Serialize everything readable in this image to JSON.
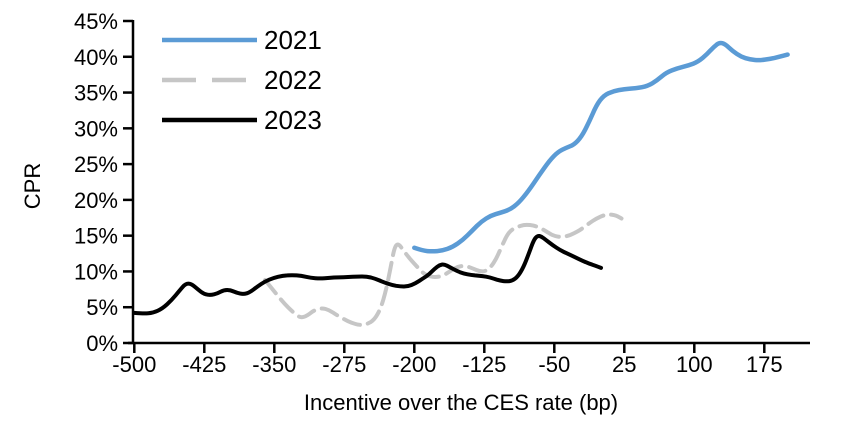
{
  "chart_data": {
    "type": "line",
    "title": "",
    "xlabel": "Incentive over the CES rate (bp)",
    "ylabel": "CPR",
    "xlim": [
      -505,
      225
    ],
    "ylim": [
      0,
      45
    ],
    "x_ticks": [
      -500,
      -425,
      -350,
      -275,
      -200,
      -125,
      -50,
      25,
      100,
      175
    ],
    "y_ticks": [
      0,
      5,
      10,
      15,
      20,
      25,
      30,
      35,
      40,
      45
    ],
    "y_tick_suffix": "%",
    "grid": false,
    "legend_position": "top-left-inside",
    "series": [
      {
        "name": "2021",
        "color": "#5B9BD5",
        "style": "solid",
        "points": [
          [
            -200,
            13.3
          ],
          [
            -191,
            12.9
          ],
          [
            -181,
            12.8
          ],
          [
            -170,
            12.9
          ],
          [
            -159,
            13.4
          ],
          [
            -148,
            14.4
          ],
          [
            -138,
            15.7
          ],
          [
            -128,
            17.0
          ],
          [
            -118,
            17.8
          ],
          [
            -108,
            18.2
          ],
          [
            -98,
            18.6
          ],
          [
            -88,
            19.6
          ],
          [
            -78,
            21.2
          ],
          [
            -66,
            23.5
          ],
          [
            -55,
            25.5
          ],
          [
            -46,
            26.7
          ],
          [
            -37,
            27.3
          ],
          [
            -29,
            27.7
          ],
          [
            -21,
            28.8
          ],
          [
            -13,
            30.8
          ],
          [
            -5,
            33.2
          ],
          [
            3,
            34.6
          ],
          [
            13,
            35.2
          ],
          [
            25,
            35.5
          ],
          [
            38,
            35.6
          ],
          [
            50,
            35.9
          ],
          [
            60,
            36.7
          ],
          [
            70,
            37.8
          ],
          [
            82,
            38.4
          ],
          [
            94,
            38.8
          ],
          [
            104,
            39.3
          ],
          [
            114,
            40.4
          ],
          [
            121,
            41.4
          ],
          [
            127,
            42.0
          ],
          [
            133,
            41.8
          ],
          [
            141,
            40.8
          ],
          [
            150,
            40.0
          ],
          [
            160,
            39.6
          ],
          [
            170,
            39.5
          ],
          [
            181,
            39.7
          ],
          [
            191,
            40.0
          ],
          [
            200,
            40.3
          ]
        ]
      },
      {
        "name": "2022",
        "color": "#C6C6C6",
        "style": "dashed",
        "points": [
          [
            -360,
            8.8
          ],
          [
            -350,
            7.2
          ],
          [
            -340,
            5.6
          ],
          [
            -330,
            4.3
          ],
          [
            -322,
            3.5
          ],
          [
            -315,
            3.8
          ],
          [
            -307,
            4.6
          ],
          [
            -299,
            4.9
          ],
          [
            -291,
            4.6
          ],
          [
            -283,
            3.9
          ],
          [
            -275,
            3.3
          ],
          [
            -267,
            2.8
          ],
          [
            -259,
            2.5
          ],
          [
            -251,
            2.6
          ],
          [
            -243,
            3.2
          ],
          [
            -236,
            4.8
          ],
          [
            -230,
            7.5
          ],
          [
            -225,
            10.8
          ],
          [
            -221,
            13.5
          ],
          [
            -217,
            13.9
          ],
          [
            -212,
            13.0
          ],
          [
            -205,
            11.8
          ],
          [
            -198,
            10.8
          ],
          [
            -191,
            9.8
          ],
          [
            -184,
            9.3
          ],
          [
            -177,
            9.2
          ],
          [
            -169,
            9.4
          ],
          [
            -161,
            10.1
          ],
          [
            -153,
            10.7
          ],
          [
            -145,
            10.8
          ],
          [
            -137,
            10.4
          ],
          [
            -130,
            10.0
          ],
          [
            -124,
            10.0
          ],
          [
            -118,
            10.6
          ],
          [
            -112,
            11.8
          ],
          [
            -106,
            13.6
          ],
          [
            -101,
            15.0
          ],
          [
            -96,
            15.8
          ],
          [
            -90,
            16.2
          ],
          [
            -83,
            16.5
          ],
          [
            -76,
            16.5
          ],
          [
            -69,
            16.3
          ],
          [
            -61,
            15.8
          ],
          [
            -53,
            15.1
          ],
          [
            -45,
            14.8
          ],
          [
            -37,
            14.9
          ],
          [
            -29,
            15.3
          ],
          [
            -21,
            15.9
          ],
          [
            -13,
            16.7
          ],
          [
            -5,
            17.4
          ],
          [
            2,
            17.8
          ],
          [
            8,
            18.0
          ],
          [
            14,
            17.9
          ],
          [
            18,
            17.7
          ],
          [
            22,
            17.4
          ]
        ]
      },
      {
        "name": "2023",
        "color": "#000000",
        "style": "solid",
        "points": [
          [
            -500,
            4.2
          ],
          [
            -490,
            4.1
          ],
          [
            -480,
            4.2
          ],
          [
            -470,
            4.8
          ],
          [
            -460,
            6.0
          ],
          [
            -451,
            7.4
          ],
          [
            -445,
            8.3
          ],
          [
            -439,
            8.3
          ],
          [
            -432,
            7.5
          ],
          [
            -425,
            6.8
          ],
          [
            -418,
            6.7
          ],
          [
            -411,
            6.9
          ],
          [
            -404,
            7.4
          ],
          [
            -397,
            7.4
          ],
          [
            -390,
            7.0
          ],
          [
            -383,
            6.8
          ],
          [
            -376,
            7.1
          ],
          [
            -368,
            7.9
          ],
          [
            -360,
            8.6
          ],
          [
            -351,
            9.1
          ],
          [
            -341,
            9.4
          ],
          [
            -331,
            9.5
          ],
          [
            -321,
            9.4
          ],
          [
            -311,
            9.1
          ],
          [
            -301,
            9.0
          ],
          [
            -291,
            9.1
          ],
          [
            -281,
            9.2
          ],
          [
            -271,
            9.2
          ],
          [
            -261,
            9.3
          ],
          [
            -251,
            9.3
          ],
          [
            -242,
            9.0
          ],
          [
            -233,
            8.5
          ],
          [
            -224,
            8.1
          ],
          [
            -215,
            7.9
          ],
          [
            -207,
            7.9
          ],
          [
            -199,
            8.3
          ],
          [
            -191,
            9.0
          ],
          [
            -184,
            9.6
          ],
          [
            -178,
            10.4
          ],
          [
            -173,
            10.9
          ],
          [
            -168,
            11.0
          ],
          [
            -162,
            10.6
          ],
          [
            -155,
            10.1
          ],
          [
            -147,
            9.7
          ],
          [
            -139,
            9.5
          ],
          [
            -131,
            9.4
          ],
          [
            -123,
            9.3
          ],
          [
            -115,
            9.0
          ],
          [
            -108,
            8.7
          ],
          [
            -101,
            8.6
          ],
          [
            -95,
            8.7
          ],
          [
            -89,
            9.3
          ],
          [
            -83,
            10.6
          ],
          [
            -77,
            12.6
          ],
          [
            -72,
            14.4
          ],
          [
            -68,
            15.0
          ],
          [
            -64,
            14.9
          ],
          [
            -59,
            14.4
          ],
          [
            -52,
            13.7
          ],
          [
            -44,
            13.0
          ],
          [
            -36,
            12.5
          ],
          [
            -28,
            12.0
          ],
          [
            -20,
            11.5
          ],
          [
            -13,
            11.1
          ],
          [
            -6,
            10.8
          ],
          [
            0,
            10.5
          ]
        ]
      }
    ]
  }
}
